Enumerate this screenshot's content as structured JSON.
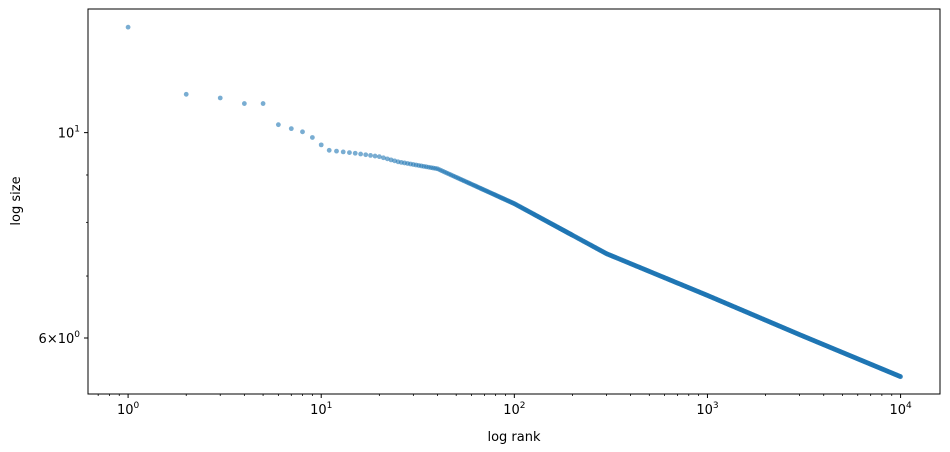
{
  "chart_data": {
    "type": "scatter",
    "title": "",
    "xlabel": "log rank",
    "ylabel": "log size",
    "xscale": "log",
    "yscale": "log",
    "xlim": [
      0.62,
      16000
    ],
    "ylim": [
      5.22,
      13.6
    ],
    "x_major_ticks": [
      {
        "value": 1,
        "base": "10",
        "exp": "0"
      },
      {
        "value": 10,
        "base": "10",
        "exp": "1"
      },
      {
        "value": 100,
        "base": "10",
        "exp": "2"
      },
      {
        "value": 1000,
        "base": "10",
        "exp": "3"
      },
      {
        "value": 10000,
        "base": "10",
        "exp": "4"
      }
    ],
    "y_major_ticks": [
      {
        "value": 6,
        "mantissa": "6",
        "base": "10",
        "exp": "0"
      },
      {
        "value": 10,
        "mantissa": "",
        "base": "10",
        "exp": "1"
      }
    ],
    "y_minor_ticks": [
      7,
      8,
      9
    ],
    "marker_color": "#1f77b4",
    "marker_alpha": 0.6,
    "head_points": [
      {
        "rank": 1,
        "size": 13.0
      },
      {
        "rank": 2,
        "size": 11.0
      },
      {
        "rank": 3,
        "size": 10.9
      },
      {
        "rank": 4,
        "size": 10.75
      },
      {
        "rank": 5,
        "size": 10.75
      },
      {
        "rank": 6,
        "size": 10.2
      },
      {
        "rank": 7,
        "size": 10.1
      },
      {
        "rank": 8,
        "size": 10.02
      },
      {
        "rank": 9,
        "size": 9.88
      },
      {
        "rank": 10,
        "size": 9.7
      }
    ],
    "curve_anchors": [
      {
        "rank": 11,
        "size": 9.57
      },
      {
        "rank": 15,
        "size": 9.5
      },
      {
        "rank": 20,
        "size": 9.42
      },
      {
        "rank": 25,
        "size": 9.3
      },
      {
        "rank": 40,
        "size": 9.14
      },
      {
        "rank": 100,
        "size": 8.38
      },
      {
        "rank": 300,
        "size": 7.4
      },
      {
        "rank": 1000,
        "size": 6.67
      },
      {
        "rank": 3000,
        "size": 6.05
      },
      {
        "rank": 10000,
        "size": 5.45
      }
    ],
    "n_points": 10000
  }
}
